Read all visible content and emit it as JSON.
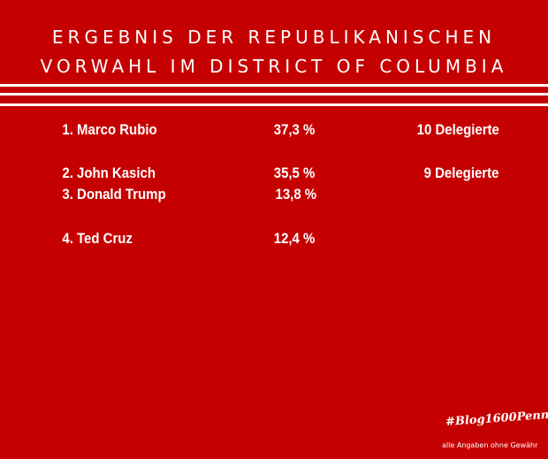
{
  "title": {
    "line1": "ERGEBNIS DER REPUBLIKANISCHEN",
    "line2": "VORWAHL IM DISTRICT OF COLUMBIA"
  },
  "results": [
    {
      "name": "1.  Marco Rubio",
      "percent": "37,3 %",
      "delegates": "10 Delegierte"
    },
    {
      "name": "2.  John Kasich",
      "percent": "35,5 %",
      "delegates": "9 Delegierte"
    },
    {
      "name": "3.  Donald Trump",
      "percent": "13,8 %",
      "delegates": ""
    },
    {
      "name": "4.  Ted Cruz",
      "percent": "12,4 %",
      "delegates": ""
    }
  ],
  "footer": {
    "hashtag": "#Blog1600Penn",
    "disclaimer": "alle Angaben ohne Gewähr"
  },
  "colors": {
    "background": "#c50000",
    "text": "#ffffff"
  }
}
